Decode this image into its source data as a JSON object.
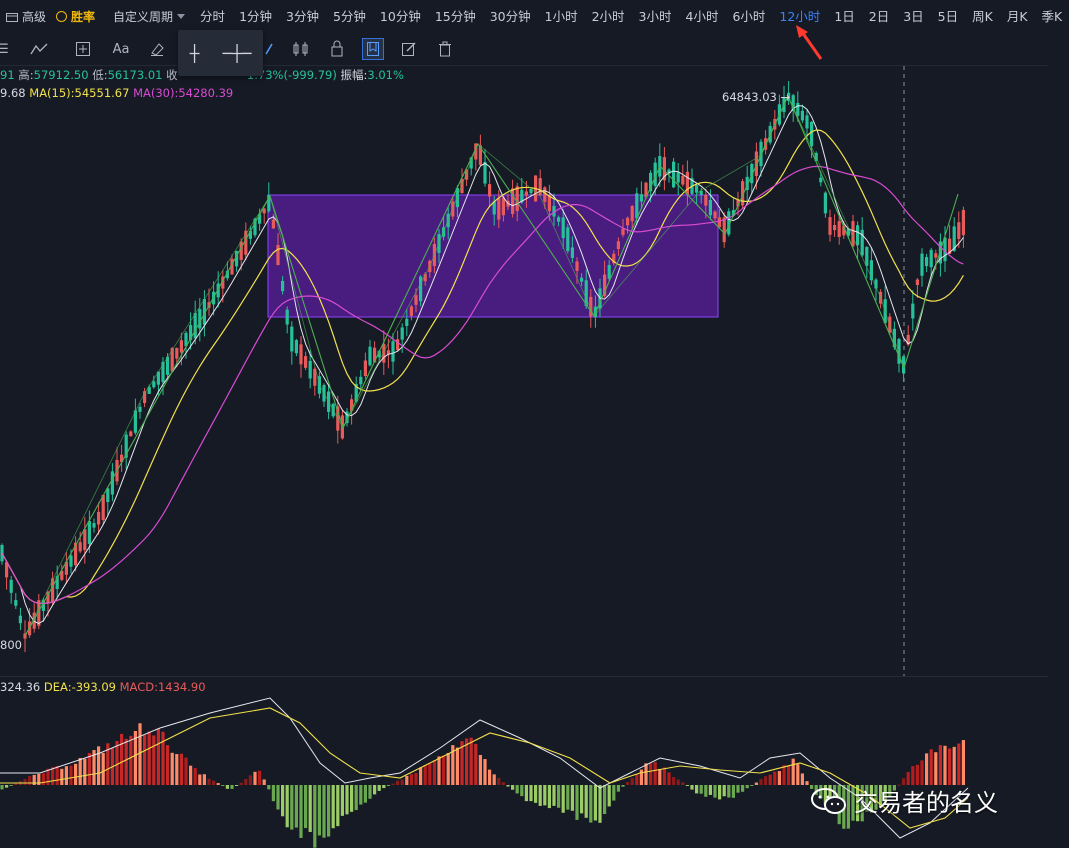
{
  "topbar": {
    "advanced_label": "高级",
    "win_rate_label": "胜率",
    "custom_period_label": "自定义周期",
    "periods": [
      "分时",
      "1分钟",
      "3分钟",
      "5分钟",
      "10分钟",
      "15分钟",
      "30分钟",
      "1小时",
      "2小时",
      "3小时",
      "4小时",
      "6小时",
      "12小时",
      "1日",
      "2日",
      "3日",
      "5日",
      "周K",
      "月K",
      "季K"
    ],
    "active_period": "12小时"
  },
  "info_line": {
    "open_tail": "91",
    "high_label": "高:",
    "high_value": "57912.50",
    "low_label": "低:",
    "low_value": "56173.01",
    "close_label": "收",
    "change_value": "1.73%(-999.79)",
    "amplitude_label": "振幅:",
    "amplitude_value": "3.01%"
  },
  "ma_line": {
    "ma_short_tail": "9.68",
    "ma15_label": "MA(15):",
    "ma15_value": "54551.67",
    "ma30_label": "MA(30):",
    "ma30_value": "54280.39"
  },
  "macd_line": {
    "dif_tail": "324.36",
    "dea_label": "DEA:",
    "dea_value": "-393.09",
    "macd_label": "MACD:",
    "macd_value": "1434.90"
  },
  "chart_data": {
    "type": "candlestick",
    "peak_label": "64843.03",
    "low_axis_label": "800",
    "colors": {
      "up": "#26c19a",
      "down": "#e95a5a",
      "ma_white": "#e6e8ee",
      "ma15": "#f2e14c",
      "ma30": "#d84bd3",
      "zigzag": "#4caf50",
      "box": "#5a1f9e",
      "macd_pos_dark": "#8b1a1a",
      "macd_pos_light": "#ff8a65",
      "macd_neg_dark": "#2e7d32",
      "macd_neg_light": "#9ccc65"
    }
  },
  "watermark": {
    "text": "交易者的名义",
    "icon": "wechat-icon"
  }
}
